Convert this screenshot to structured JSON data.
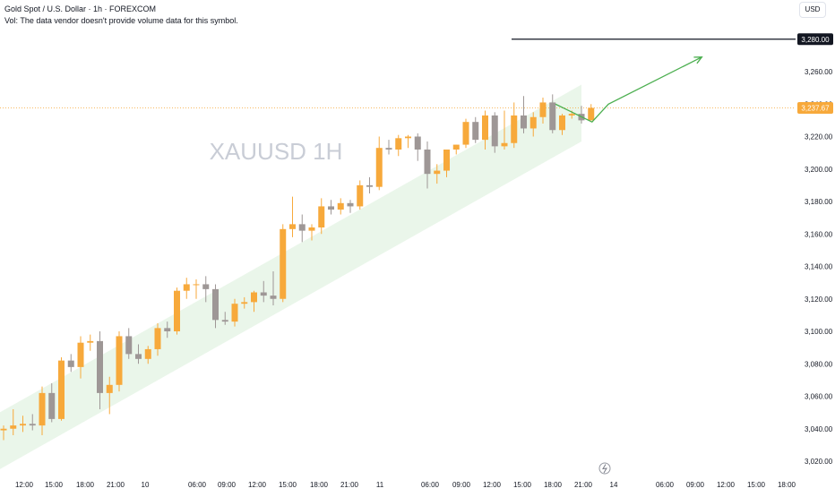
{
  "header": {
    "symbol_line": "Gold Spot / U.S. Dollar · 1h · FOREXCOM",
    "vol_line": "Vol: The data vendor doesn't provide volume data for this symbol.",
    "currency": "USD"
  },
  "watermark": "XAUUSD 1H",
  "colors": {
    "bull": "#f7a93b",
    "bear": "#9e9796",
    "channel": "#e6f4e6",
    "arrow": "#4caf50",
    "resistance": "#131722",
    "price_line": "#f7a93b",
    "text": "#131722"
  },
  "chart_data": {
    "type": "candlestick",
    "symbol": "XAUUSD",
    "timeframe": "1h",
    "ylim": [
      3010,
      3290
    ],
    "y_ticks": [
      "3,020.00",
      "3,040.00",
      "3,060.00",
      "3,080.00",
      "3,100.00",
      "3,120.00",
      "3,140.00",
      "3,160.00",
      "3,180.00",
      "3,200.00",
      "3,220.00",
      "3,240.00",
      "3,260.00",
      "3,280.00"
    ],
    "x_ticks": [
      "12:00",
      "15:00",
      "18:00",
      "21:00",
      "10",
      "06:00",
      "09:00",
      "12:00",
      "15:00",
      "18:00",
      "21:00",
      "11",
      "06:00",
      "09:00",
      "12:00",
      "15:00",
      "18:00",
      "21:00",
      "14",
      "06:00",
      "09:00",
      "12:00",
      "15:00",
      "18:00"
    ],
    "candles": [
      {
        "o": 3039,
        "h": 3042,
        "l": 3033,
        "c": 3040
      },
      {
        "o": 3040,
        "h": 3052,
        "l": 3036,
        "c": 3042
      },
      {
        "o": 3042,
        "h": 3048,
        "l": 3038,
        "c": 3043
      },
      {
        "o": 3043,
        "h": 3049,
        "l": 3039,
        "c": 3042
      },
      {
        "o": 3042,
        "h": 3066,
        "l": 3036,
        "c": 3062
      },
      {
        "o": 3062,
        "h": 3068,
        "l": 3044,
        "c": 3046
      },
      {
        "o": 3046,
        "h": 3084,
        "l": 3045,
        "c": 3082
      },
      {
        "o": 3082,
        "h": 3086,
        "l": 3075,
        "c": 3078
      },
      {
        "o": 3078,
        "h": 3097,
        "l": 3071,
        "c": 3093
      },
      {
        "o": 3093,
        "h": 3098,
        "l": 3088,
        "c": 3094
      },
      {
        "o": 3094,
        "h": 3100,
        "l": 3052,
        "c": 3062
      },
      {
        "o": 3062,
        "h": 3072,
        "l": 3049,
        "c": 3067
      },
      {
        "o": 3067,
        "h": 3100,
        "l": 3063,
        "c": 3097
      },
      {
        "o": 3097,
        "h": 3102,
        "l": 3083,
        "c": 3086
      },
      {
        "o": 3086,
        "h": 3092,
        "l": 3080,
        "c": 3083
      },
      {
        "o": 3083,
        "h": 3091,
        "l": 3080,
        "c": 3089
      },
      {
        "o": 3089,
        "h": 3105,
        "l": 3085,
        "c": 3102
      },
      {
        "o": 3102,
        "h": 3106,
        "l": 3096,
        "c": 3100
      },
      {
        "o": 3100,
        "h": 3127,
        "l": 3098,
        "c": 3125
      },
      {
        "o": 3125,
        "h": 3133,
        "l": 3120,
        "c": 3129
      },
      {
        "o": 3129,
        "h": 3132,
        "l": 3120,
        "c": 3129
      },
      {
        "o": 3129,
        "h": 3134,
        "l": 3118,
        "c": 3126
      },
      {
        "o": 3126,
        "h": 3129,
        "l": 3102,
        "c": 3107
      },
      {
        "o": 3107,
        "h": 3112,
        "l": 3104,
        "c": 3106
      },
      {
        "o": 3106,
        "h": 3120,
        "l": 3103,
        "c": 3117
      },
      {
        "o": 3117,
        "h": 3121,
        "l": 3114,
        "c": 3118
      },
      {
        "o": 3118,
        "h": 3125,
        "l": 3112,
        "c": 3124
      },
      {
        "o": 3124,
        "h": 3131,
        "l": 3118,
        "c": 3122
      },
      {
        "o": 3122,
        "h": 3137,
        "l": 3116,
        "c": 3120
      },
      {
        "o": 3120,
        "h": 3166,
        "l": 3118,
        "c": 3163
      },
      {
        "o": 3163,
        "h": 3183,
        "l": 3158,
        "c": 3166
      },
      {
        "o": 3166,
        "h": 3172,
        "l": 3155,
        "c": 3162
      },
      {
        "o": 3162,
        "h": 3166,
        "l": 3156,
        "c": 3164
      },
      {
        "o": 3164,
        "h": 3182,
        "l": 3160,
        "c": 3177
      },
      {
        "o": 3177,
        "h": 3181,
        "l": 3172,
        "c": 3175
      },
      {
        "o": 3175,
        "h": 3182,
        "l": 3172,
        "c": 3179
      },
      {
        "o": 3179,
        "h": 3181,
        "l": 3173,
        "c": 3177
      },
      {
        "o": 3177,
        "h": 3193,
        "l": 3175,
        "c": 3190
      },
      {
        "o": 3190,
        "h": 3195,
        "l": 3185,
        "c": 3189
      },
      {
        "o": 3189,
        "h": 3220,
        "l": 3187,
        "c": 3213
      },
      {
        "o": 3213,
        "h": 3218,
        "l": 3209,
        "c": 3212
      },
      {
        "o": 3212,
        "h": 3221,
        "l": 3208,
        "c": 3219
      },
      {
        "o": 3219,
        "h": 3221,
        "l": 3213,
        "c": 3220
      },
      {
        "o": 3220,
        "h": 3222,
        "l": 3205,
        "c": 3212
      },
      {
        "o": 3212,
        "h": 3217,
        "l": 3188,
        "c": 3197
      },
      {
        "o": 3197,
        "h": 3203,
        "l": 3191,
        "c": 3199
      },
      {
        "o": 3199,
        "h": 3212,
        "l": 3195,
        "c": 3212
      },
      {
        "o": 3212,
        "h": 3215,
        "l": 3209,
        "c": 3215
      },
      {
        "o": 3215,
        "h": 3231,
        "l": 3213,
        "c": 3229
      },
      {
        "o": 3229,
        "h": 3232,
        "l": 3216,
        "c": 3218
      },
      {
        "o": 3218,
        "h": 3236,
        "l": 3212,
        "c": 3233
      },
      {
        "o": 3233,
        "h": 3235,
        "l": 3210,
        "c": 3214
      },
      {
        "o": 3214,
        "h": 3236,
        "l": 3212,
        "c": 3216
      },
      {
        "o": 3216,
        "h": 3241,
        "l": 3213,
        "c": 3233
      },
      {
        "o": 3233,
        "h": 3245,
        "l": 3222,
        "c": 3225
      },
      {
        "o": 3225,
        "h": 3235,
        "l": 3220,
        "c": 3232
      },
      {
        "o": 3232,
        "h": 3244,
        "l": 3228,
        "c": 3241
      },
      {
        "o": 3241,
        "h": 3246,
        "l": 3222,
        "c": 3224
      },
      {
        "o": 3224,
        "h": 3234,
        "l": 3221,
        "c": 3233
      },
      {
        "o": 3233,
        "h": 3236,
        "l": 3231,
        "c": 3234
      },
      {
        "o": 3234,
        "h": 3239,
        "l": 3228,
        "c": 3230
      },
      {
        "o": 3230,
        "h": 3240,
        "l": 3230,
        "c": 3237.67
      }
    ],
    "resistance_level": 3280.0,
    "resistance_label": "3,280.00",
    "last_price": 3237.67,
    "last_price_label": "3,237.67",
    "hidden_label": "3,240.00",
    "channel": {
      "lower": [
        {
          "bar": -4,
          "price": 3038
        },
        {
          "bar": 60,
          "price": 3252
        }
      ],
      "upper": [
        {
          "bar": -4,
          "price": 3003
        },
        {
          "bar": 60,
          "price": 3217
        }
      ]
    },
    "projection": [
      {
        "bar": 57.3,
        "price": 3240
      },
      {
        "bar": 61.1,
        "price": 3229
      },
      {
        "bar": 62.8,
        "price": 3240
      },
      {
        "bar": 72.5,
        "price": 3269
      }
    ]
  }
}
